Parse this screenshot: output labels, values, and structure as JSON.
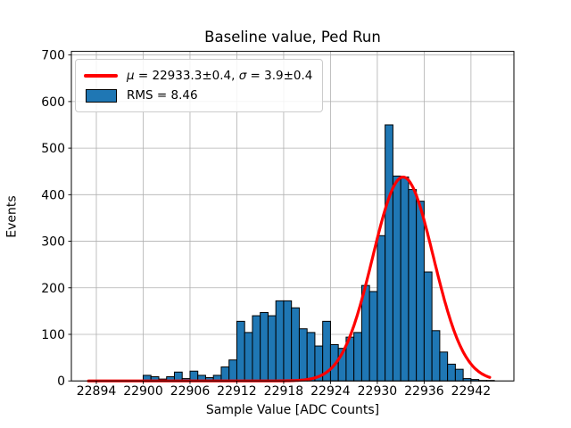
{
  "title": "Baseline value, Ped Run",
  "xlabel": "Sample Value [ADC Counts]",
  "ylabel": "Events",
  "legend": {
    "mu_symbol": "μ",
    "mu_rest": " = 22933.3±0.4, ",
    "sigma_symbol": "σ",
    "sigma_rest": " = 3.9±0.4",
    "rms_label": "RMS = 8.46"
  },
  "chart_data": {
    "type": "bar",
    "subtype": "histogram-with-gaussian-fit",
    "title": "Baseline value, Ped Run",
    "xlabel": "Sample Value [ADC Counts]",
    "ylabel": "Events",
    "bin_width": 1,
    "bin_start": 22900,
    "categories_note": "bin left edges run 22900..22944 in steps of 1 ADC count",
    "counts": [
      12,
      9,
      4,
      9,
      19,
      5,
      21,
      12,
      7,
      12,
      30,
      45,
      128,
      104,
      140,
      147,
      140,
      172,
      172,
      157,
      112,
      104,
      75,
      128,
      78,
      70,
      94,
      104,
      205,
      192,
      312,
      550,
      440,
      438,
      411,
      386,
      234,
      108,
      62,
      36,
      25,
      5,
      3,
      1,
      1
    ],
    "fit": {
      "shape": "gaussian",
      "amplitude": 438,
      "mu": 22933.3,
      "mu_err": 0.4,
      "sigma": 3.9,
      "sigma_err": 0.4,
      "range": [
        22893.0,
        22944.6
      ]
    },
    "rms": 8.46,
    "x_ticks": [
      22894,
      22900,
      22906,
      22912,
      22918,
      22924,
      22930,
      22936,
      22942
    ],
    "y_ticks": [
      0,
      100,
      200,
      300,
      400,
      500,
      600,
      700
    ],
    "xlim": [
      22890.8,
      22947.5
    ],
    "ylim": [
      0,
      707.8
    ],
    "grid": true,
    "legend_position": "upper-left",
    "colors": {
      "bar_fill": "#1f77b4",
      "bar_edge": "#000000",
      "fit_line": "#ff0000",
      "grid": "#b0b0b0",
      "spine": "#000000",
      "background": "#ffffff"
    }
  }
}
